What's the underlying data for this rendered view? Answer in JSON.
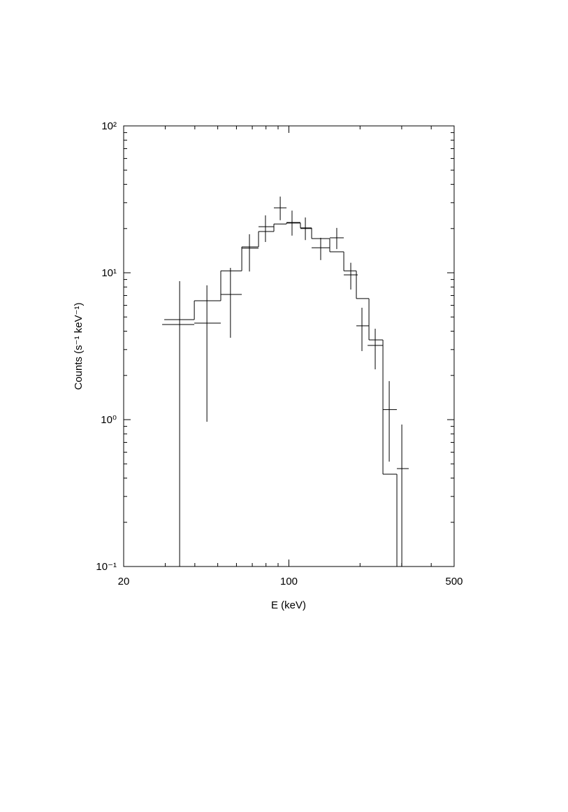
{
  "chart_data": {
    "type": "spectrum",
    "x_label": "E (keV)",
    "y_label": "Counts (s⁻¹ keV⁻¹)",
    "xscale": "log",
    "yscale": "log",
    "color": "#000000",
    "xlim": [
      20,
      500
    ],
    "xticks": [
      20,
      100,
      500
    ],
    "xminorticks": [
      30,
      40,
      50,
      60,
      70,
      80,
      90,
      200,
      300,
      400
    ],
    "ylim": [
      0.1,
      100
    ],
    "yticks": [
      {
        "value": 0.1,
        "label": "10⁻¹"
      },
      {
        "value": 1,
        "label": "10⁰"
      },
      {
        "value": 10,
        "label": "10¹"
      },
      {
        "value": 100,
        "label": "10²"
      }
    ],
    "yminorticks": [
      0.2,
      0.3,
      0.4,
      0.5,
      0.6,
      0.7,
      0.8,
      0.9,
      2,
      3,
      4,
      5,
      6,
      7,
      8,
      9,
      20,
      30,
      40,
      50,
      60,
      70,
      80,
      90
    ],
    "points": {
      "x": [
        34.5,
        45.0,
        56.6,
        68.1,
        79.6,
        91.9,
        103.1,
        117.4,
        136.3,
        159.4,
        182.7,
        203.7,
        231.8,
        265.7,
        300.4
      ],
      "xlow": [
        29.1,
        39.8,
        51.5,
        63.2,
        74.4,
        86.4,
        97.7,
        111.9,
        124.8,
        148.9,
        170.7,
        192.9,
        215.3,
        249.9,
        286.3
      ],
      "xhigh": [
        39.8,
        51.5,
        63.2,
        74.4,
        86.4,
        97.7,
        111.9,
        124.8,
        148.9,
        170.7,
        195.6,
        218.1,
        249.9,
        286.3,
        321.4
      ],
      "values": [
        4.44,
        4.54,
        7.12,
        14.7,
        20.6,
        27.7,
        22.0,
        20.0,
        14.8,
        17.3,
        9.68,
        4.35,
        3.2,
        1.17,
        0.464
      ],
      "ylow": [
        0.05,
        0.967,
        3.61,
        10.2,
        16.2,
        22.8,
        17.9,
        16.7,
        12.2,
        14.5,
        7.69,
        2.93,
        2.2,
        0.518,
        0.05
      ],
      "yhigh": [
        8.77,
        8.21,
        10.8,
        18.3,
        24.6,
        33.0,
        26.5,
        23.8,
        17.3,
        20.2,
        11.7,
        5.78,
        4.16,
        1.83,
        0.926
      ]
    },
    "model": {
      "edges": [
        29.7,
        39.8,
        51.5,
        63.2,
        74.4,
        86.4,
        97.7,
        111.9,
        124.8,
        148.9,
        170.7,
        192.9,
        218.1,
        249.9,
        286.3,
        321.4
      ],
      "values": [
        4.8,
        6.45,
        10.3,
        15.0,
        19.1,
        21.5,
        21.8,
        20.2,
        17.1,
        13.9,
        10.3,
        6.67,
        3.49,
        0.425,
        0.05
      ]
    }
  }
}
